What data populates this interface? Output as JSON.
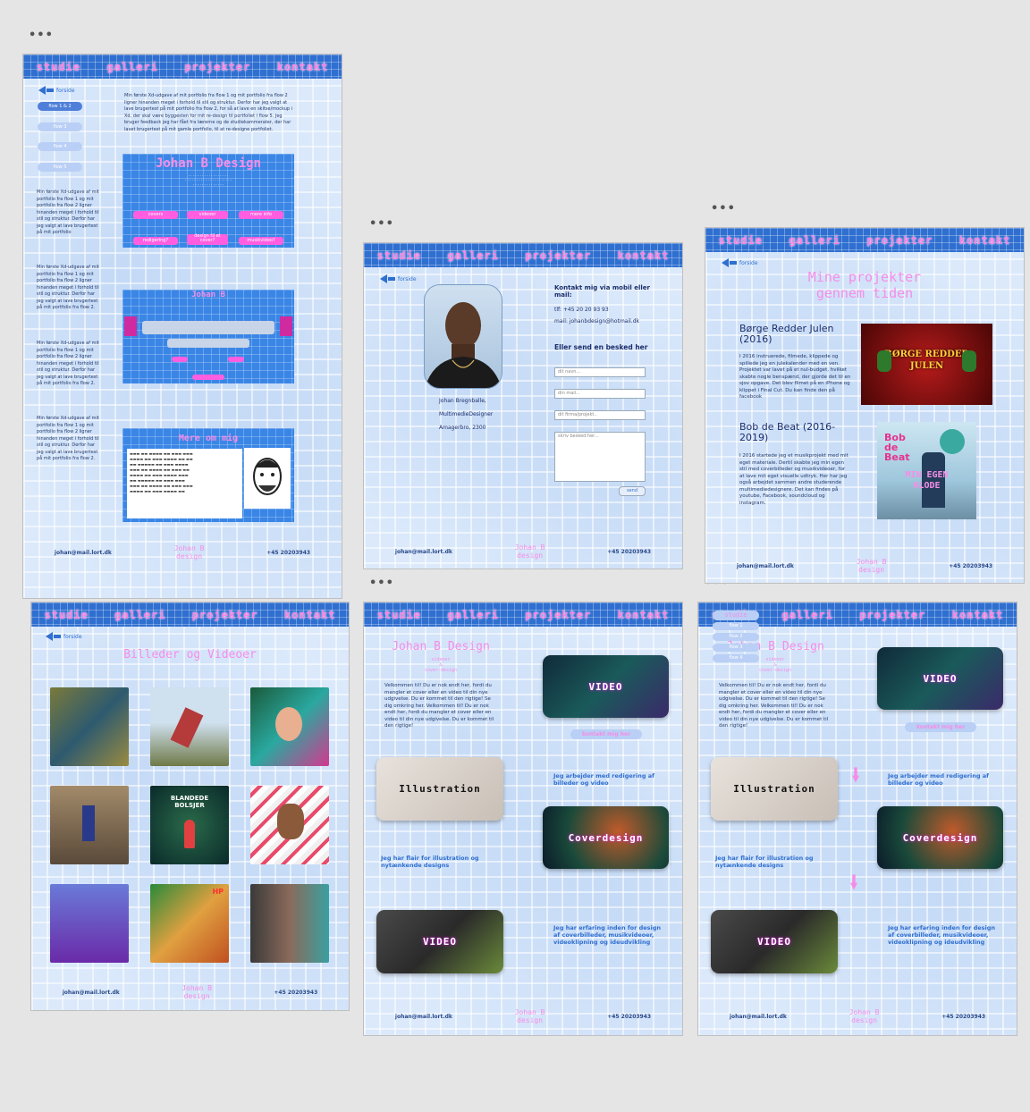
{
  "nav": [
    "studie",
    "galleri",
    "projekter",
    "kontakt"
  ],
  "back_label": "forside",
  "footer": {
    "email": "johan@mail.lort.dk",
    "brand_line1": "Johan B",
    "brand_line2": "design",
    "phone": "+45 20203943"
  },
  "frame1": {
    "pills": [
      "flow 1 & 2",
      "flow 3",
      "flow 4",
      "flow 5"
    ],
    "intro": "Min første Xd-udgave af mit portfolio fra flow 1 og mit portfolio fra flow 2 ligner hinanden meget i forhold til stil og struktur. Derfor har jeg valgt at lave brugertest på mit portfolio fra flow 2, for så at lave en skitse/mockup i Xd, der skal være byggesten for mit re-design til portfoliet i flow 5. Jeg bruger feedback jeg har fået fra lærerne og de studiekammerater, der har lavet brugertest på mit gamle portfolio, til at re-designe portfoliet.",
    "side_texts": [
      "Min første Xd-udgave af mit portfolio fra flow 1 og mit portfolio fra flow 2 ligner hinanden meget i forhold til stil og struktur. Derfor har jeg valgt at lave brugertest på mit portfolio",
      "Min første Xd-udgave af mit portfolio fra flow 1 og mit portfolio fra flow 2 ligner hinanden meget i forhold til stil og struktur. Derfor har jeg valgt at lave brugertest på mit portfolio fra flow 2.",
      "Min første Xd-udgave af mit portfolio fra flow 1 og mit portfolio fra flow 2 ligner hinanden meget i forhold til stil og struktur. Derfor har jeg valgt at lave brugertest på mit portfolio fra flow 2.",
      "Min første Xd-udgave af mit portfolio fra flow 1 og mit portfolio fra flow 2 ligner hinanden meget i forhold til stil og struktur. Derfor har jeg valgt at lave brugertest på mit portfolio fra flow 2."
    ],
    "shot1_title": "Johan B Design",
    "shot1_buttons": [
      "covers",
      "videoer",
      "mere info",
      "redigering?",
      "design til et cover?",
      "musikvideo?"
    ],
    "shot2_title": "Johan B",
    "shot3_title": "Mere om mig"
  },
  "frame2": {
    "person_lines": [
      "Johan Bregnballe,",
      "MultimedieDesigner",
      "Amagerbro, 2300"
    ],
    "contact_heading": "Kontakt mig via mobil eller mail:",
    "tlf": "tlf: +45 20 20 93 93",
    "mail": "mail: johanbdesign@hotmail.dk",
    "send_heading": "Eller send en besked her",
    "placeholders": [
      "dit navn...",
      "din mail...",
      "dit firma/projekt..",
      "skriv besked her..."
    ],
    "send_button": "send"
  },
  "frame3": {
    "title_line1": "Mine projekter",
    "title_line2": "gennem tiden",
    "projects": [
      {
        "title": "Børge Redder Julen (2016)",
        "text": "I 2016 instruerede, filmede, klippede og spillede jeg en julekalender med en ven. Projektet var lavet på et nul-budget, hvilket skabte nogle benspænd, der gjorde det til en sjov opgave. Det blev filmet på en iPhone og klippet i Final Cut. Du kan finde den på facebook",
        "image_text": "BØRGE REDDER JULEN"
      },
      {
        "title": "Bob de Beat (2016-2019)",
        "text": "I 2016 startede jeg et musikprojekt med mit eget materiale. Dertil skabte jeg min egen stil med coverbilleder og musikvideoer, for at lave mit eget visuelle udtryk. Her har jeg også arbejdet sammen andre studerende multimediedesignere. Det kan findes på youtube, Facebook, soundcloud og instagram.",
        "image_text_top": "Bob de Beat",
        "image_text_bottom": "MIN EGEN KLODE"
      }
    ]
  },
  "frame4": {
    "title": "Billeder og Videoer",
    "thumb_texts": [
      "",
      "",
      "",
      "",
      "BLANDEDE BOLSJER",
      "",
      "",
      "HP",
      ""
    ]
  },
  "frame5": {
    "title": "Johan B Design",
    "subtitle_lines": [
      "videoer",
      "&",
      "cover-design"
    ],
    "welcome": "Velkommen til! Du er nok endt her, fordi du mangler et cover eller en video til din nye udgivelse. Du er kommet til den rigtige! Se dig omkring her. Velkommen til! Du er nok endt her, fordi du mangler et cover eller en video til din nye udgivelse. Du er kommet til den rigtige!",
    "cards": [
      "VIDEO",
      "Illustration",
      "Coverdesign",
      "VIDEO"
    ],
    "contact_button": "kontakt mig her",
    "texts": [
      "Jeg arbejder med redigering af billeder og video",
      "Jeg har flair for illustration og nytænkende designs",
      "Jeg har erfaring inden for design af coverbilleder, musikvideoer, videoklipning og ideudvikling"
    ]
  },
  "frame6": {
    "dropdown": [
      "studie",
      "flow 1",
      "flow 2",
      "flow 3",
      "flow 4"
    ]
  }
}
